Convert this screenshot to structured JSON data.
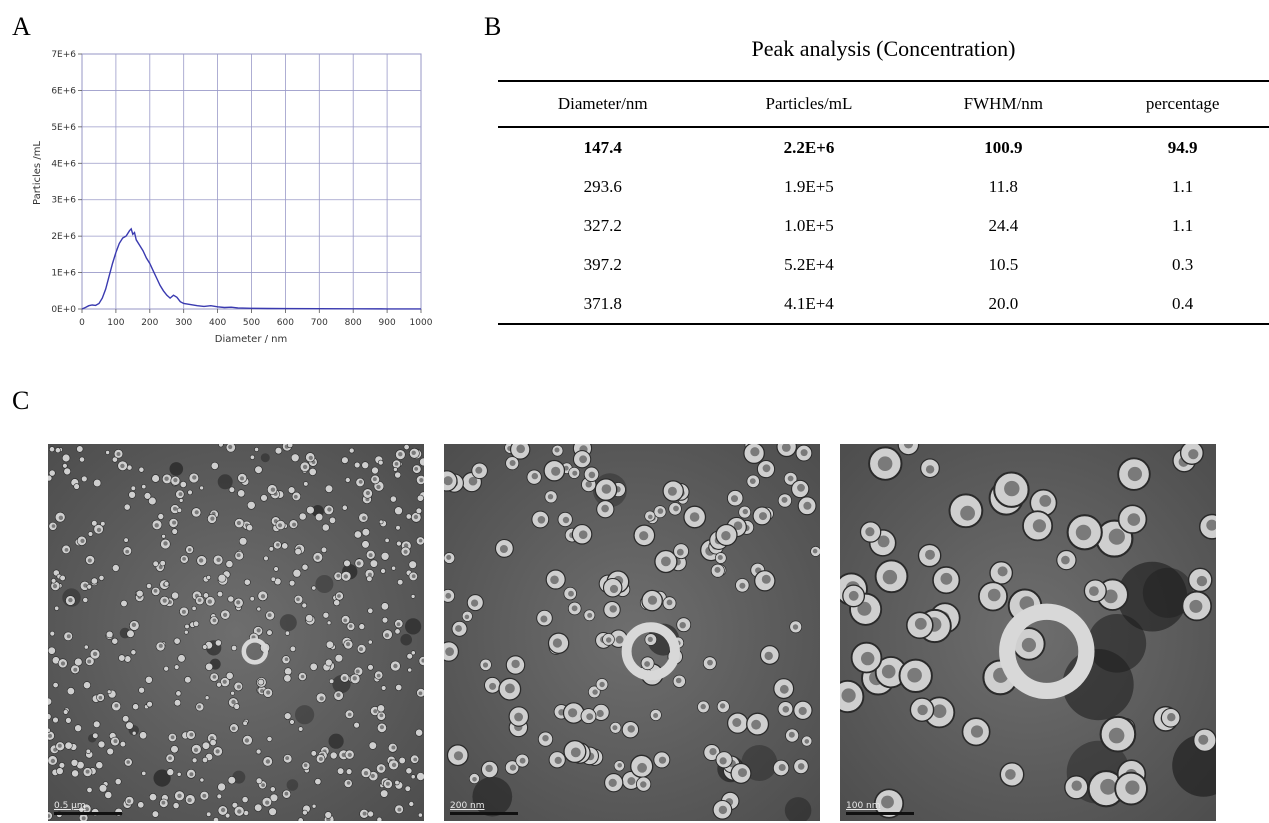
{
  "panels": {
    "a": "A",
    "b": "B",
    "c": "C"
  },
  "chart_data": {
    "type": "line",
    "xlabel": "Diameter / nm",
    "ylabel": "Particles /mL",
    "xlim": [
      0,
      1000
    ],
    "ylim": [
      0,
      7000000
    ],
    "x_ticks": [
      "0",
      "100",
      "200",
      "300",
      "400",
      "500",
      "600",
      "700",
      "800",
      "900",
      "1000"
    ],
    "y_ticks": [
      "0E+0",
      "1E+6",
      "2E+6",
      "3E+6",
      "4E+6",
      "5E+6",
      "6E+6",
      "7E+6"
    ],
    "grid": true,
    "line_color": "#3a3ab0",
    "x": [
      0,
      10,
      20,
      30,
      40,
      50,
      60,
      70,
      80,
      90,
      100,
      110,
      120,
      130,
      140,
      145,
      150,
      155,
      160,
      170,
      180,
      190,
      200,
      210,
      220,
      230,
      240,
      250,
      260,
      270,
      280,
      290,
      300,
      320,
      340,
      360,
      380,
      400,
      420,
      440,
      460,
      500,
      550,
      600,
      700,
      800,
      900,
      1000
    ],
    "y": [
      0,
      40000,
      90000,
      110000,
      100000,
      150000,
      300000,
      550000,
      900000,
      1250000,
      1550000,
      1800000,
      1950000,
      2000000,
      2150000,
      2200000,
      2050000,
      2100000,
      1900000,
      1750000,
      1600000,
      1400000,
      1250000,
      1050000,
      850000,
      650000,
      500000,
      380000,
      300000,
      380000,
      320000,
      200000,
      150000,
      120000,
      90000,
      70000,
      90000,
      60000,
      40000,
      50000,
      30000,
      20000,
      15000,
      10000,
      8000,
      5000,
      3000,
      2000
    ]
  },
  "table": {
    "title": "Peak analysis (Concentration)",
    "headers": [
      "Diameter/nm",
      "Particles/mL",
      "FWHM/nm",
      "percentage"
    ],
    "rows": [
      [
        "147.4",
        "2.2E+6",
        "100.9",
        "94.9"
      ],
      [
        "293.6",
        "1.9E+5",
        "11.8",
        "1.1"
      ],
      [
        "327.2",
        "1.0E+5",
        "24.4",
        "1.1"
      ],
      [
        "397.2",
        "5.2E+4",
        "10.5",
        "0.3"
      ],
      [
        "371.8",
        "4.1E+4",
        "20.0",
        "0.4"
      ]
    ]
  },
  "images": [
    {
      "scale_label": "0.5 μm",
      "description": "tem-low-magnification"
    },
    {
      "scale_label": "200 nm",
      "description": "tem-medium-magnification"
    },
    {
      "scale_label": "100 nm",
      "description": "tem-high-magnification"
    }
  ]
}
